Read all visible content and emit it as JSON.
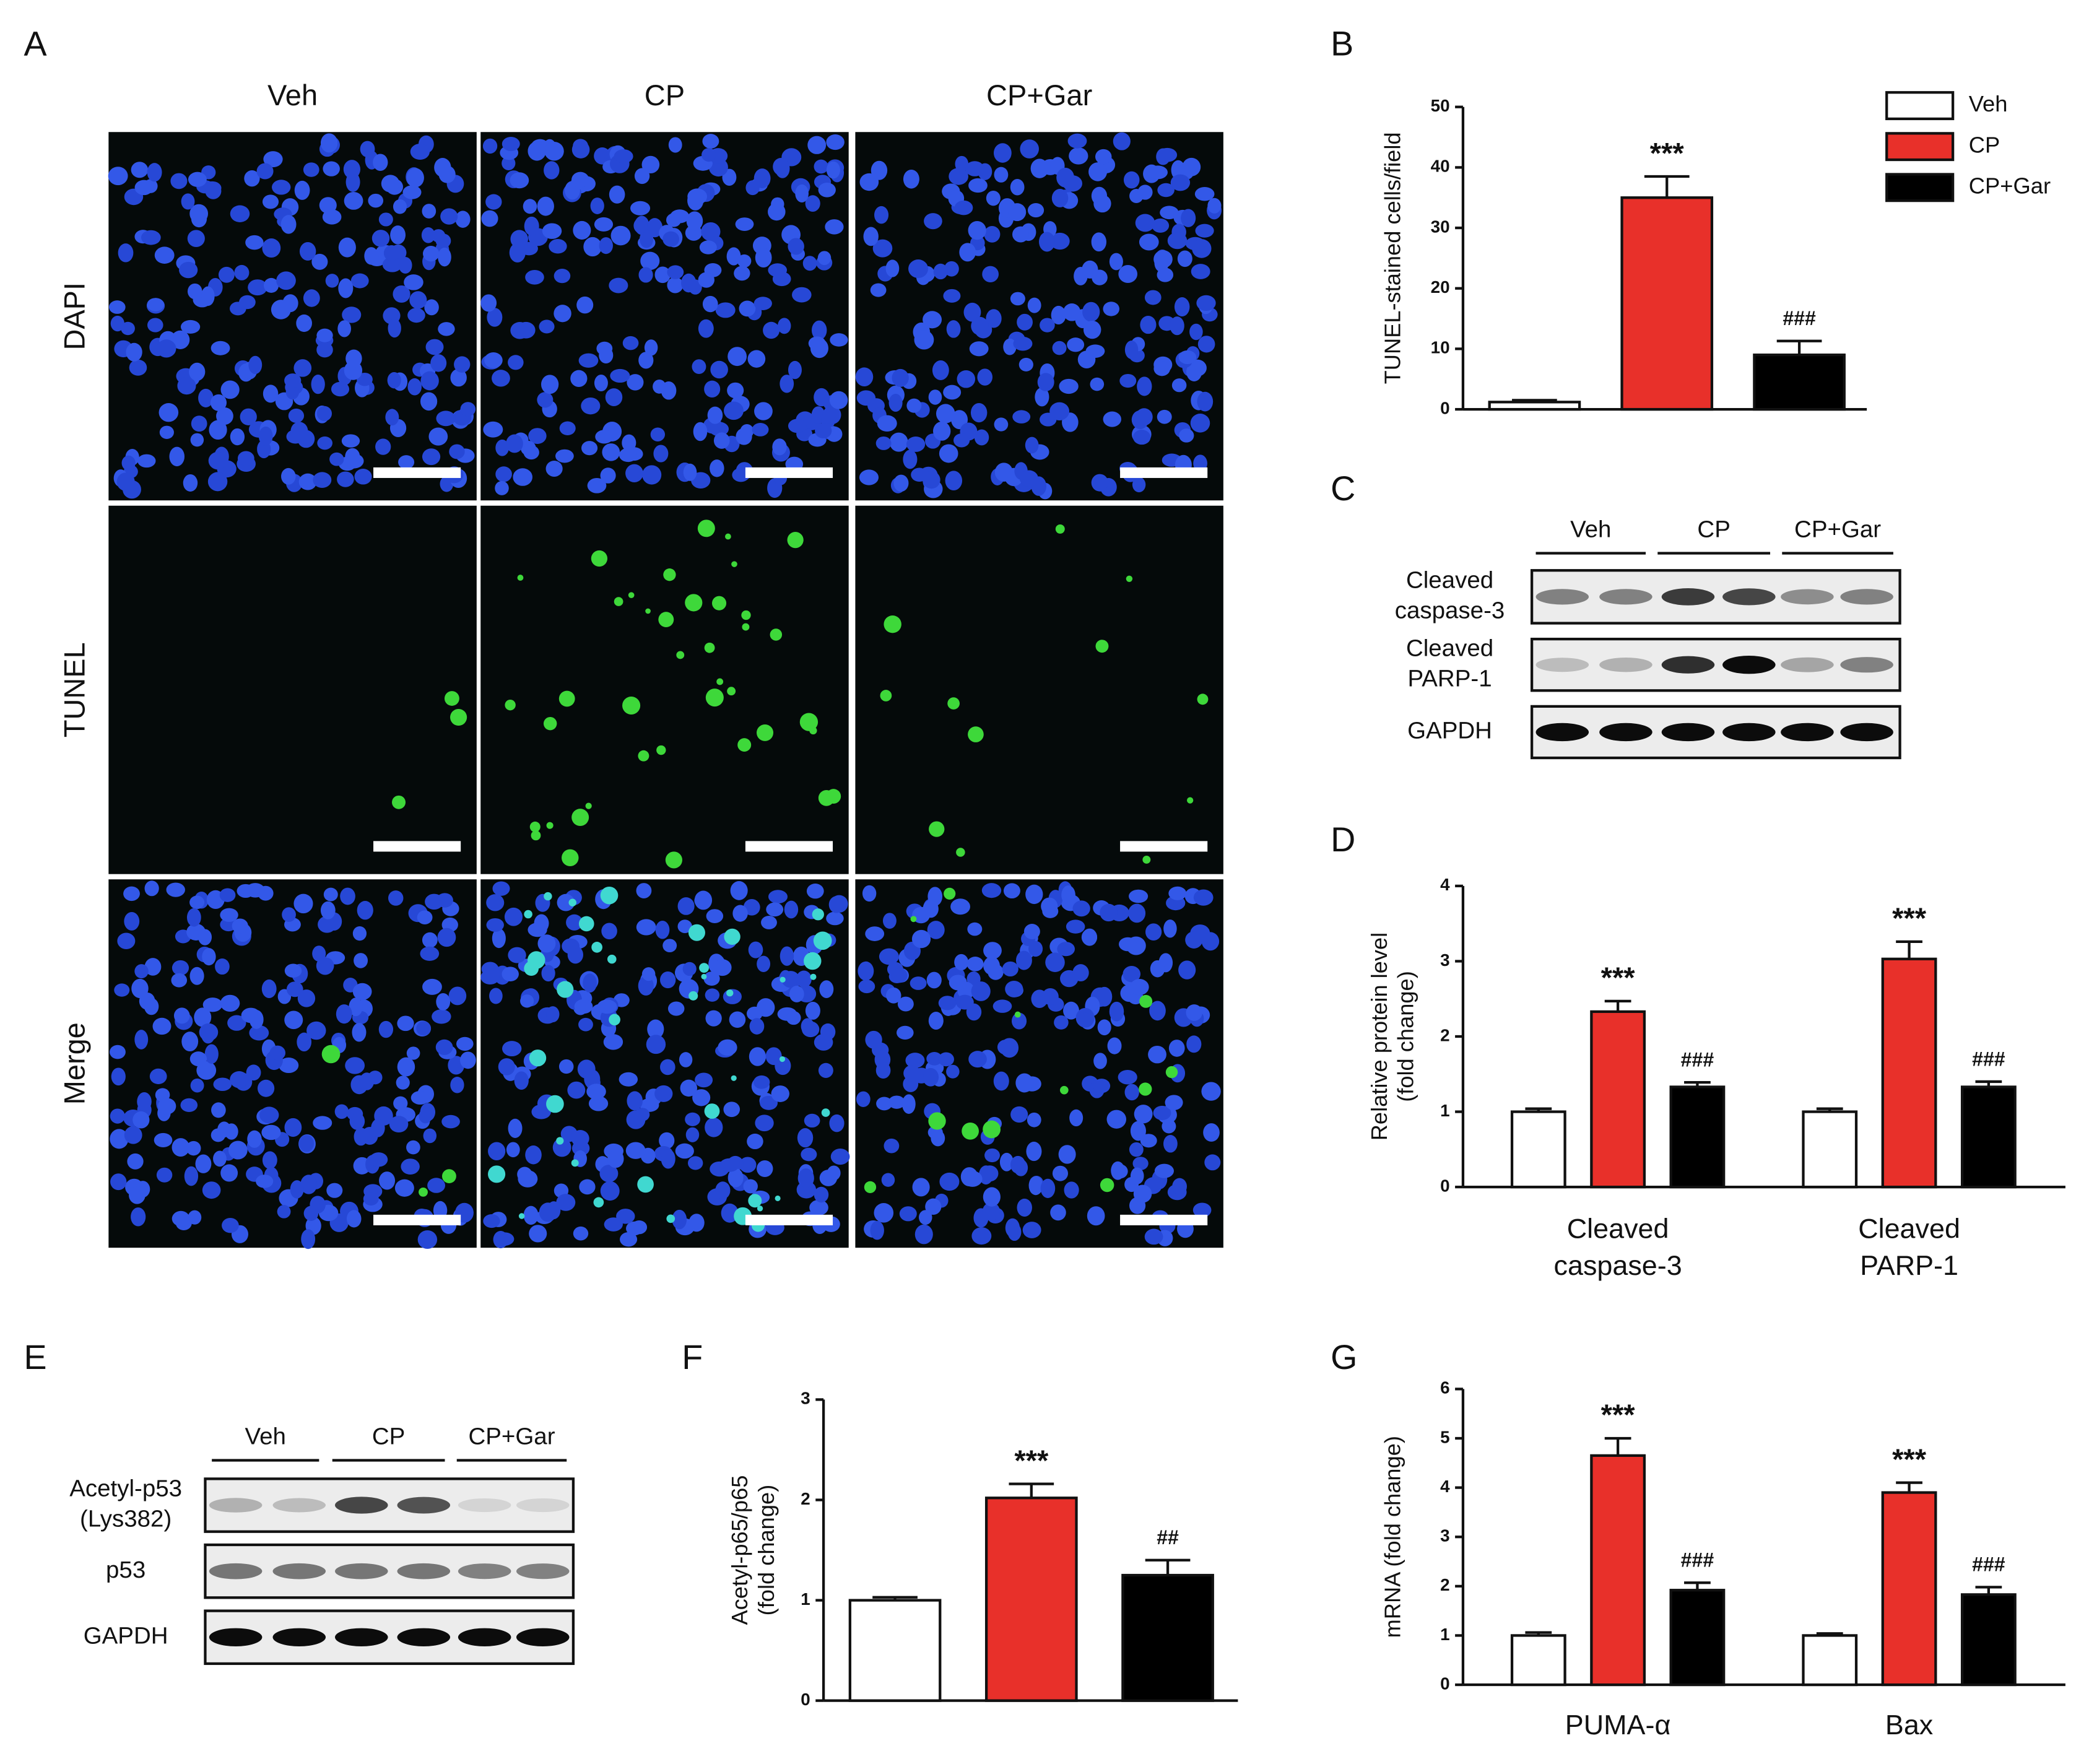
{
  "panels": [
    "A",
    "B",
    "C",
    "D",
    "E",
    "F",
    "G"
  ],
  "microscopy": {
    "columns": [
      "Veh",
      "CP",
      "CP+Gar"
    ],
    "rows": [
      "DAPI",
      "TUNEL",
      "Merge"
    ]
  },
  "blot_c": {
    "groups": [
      "Veh",
      "CP",
      "CP+Gar"
    ],
    "bands": [
      [
        "Cleaved",
        "caspase-3"
      ],
      [
        "Cleaved",
        "PARP-1"
      ],
      [
        "GAPDH"
      ]
    ]
  },
  "blot_e": {
    "groups": [
      "Veh",
      "CP",
      "CP+Gar"
    ],
    "bands": [
      [
        "Acetyl-p53",
        "(Lys382)"
      ],
      [
        "p53"
      ],
      [
        "GAPDH"
      ]
    ]
  },
  "chart_data": [
    {
      "type": "bar",
      "ylabel": [
        "TUNEL-stained cells/field"
      ],
      "ylim": [
        0,
        50
      ],
      "yticks": [
        0,
        10,
        20,
        30,
        40,
        50
      ],
      "legend": true,
      "series": [
        {
          "name": "Veh",
          "color": "#ffffff",
          "values": [
            1.2
          ],
          "errors": [
            0.3
          ]
        },
        {
          "name": "CP",
          "color": "#e8302a",
          "values": [
            35
          ],
          "errors": [
            3.5
          ],
          "annotations": [
            "***"
          ]
        },
        {
          "name": "CP+Gar",
          "color": "#000000",
          "values": [
            9
          ],
          "errors": [
            2.3
          ],
          "annotations": [
            "###"
          ]
        }
      ]
    },
    {
      "type": "bar",
      "ylabel": [
        "Relative protein level",
        "(fold change)"
      ],
      "ylim": [
        0,
        4
      ],
      "yticks": [
        0,
        1,
        2,
        3,
        4
      ],
      "legend": false,
      "categories": [
        [
          "Cleaved",
          "caspase-3"
        ],
        [
          "Cleaved",
          "PARP-1"
        ]
      ],
      "series": [
        {
          "name": "Veh",
          "color": "#ffffff",
          "values": [
            1,
            1
          ],
          "errors": [
            0.04,
            0.04
          ]
        },
        {
          "name": "CP",
          "color": "#e8302a",
          "values": [
            2.33,
            3.03
          ],
          "errors": [
            0.14,
            0.23
          ],
          "annotations": [
            "***",
            "***"
          ]
        },
        {
          "name": "CP+Gar",
          "color": "#000000",
          "values": [
            1.33,
            1.33
          ],
          "errors": [
            0.06,
            0.07
          ],
          "annotations": [
            "###",
            "###"
          ]
        }
      ]
    },
    {
      "type": "bar",
      "ylabel": [
        "Acetyl-p65/p65",
        "(fold change)"
      ],
      "ylim": [
        0,
        3
      ],
      "yticks": [
        0,
        1,
        2,
        3
      ],
      "legend": false,
      "series": [
        {
          "name": "Veh",
          "color": "#ffffff",
          "values": [
            1
          ],
          "errors": [
            0.03
          ]
        },
        {
          "name": "CP",
          "color": "#e8302a",
          "values": [
            2.02
          ],
          "errors": [
            0.14
          ],
          "annotations": [
            "***"
          ]
        },
        {
          "name": "CP+Gar",
          "color": "#000000",
          "values": [
            1.25
          ],
          "errors": [
            0.15
          ],
          "annotations": [
            "##"
          ]
        }
      ]
    },
    {
      "type": "bar",
      "ylabel": [
        "mRNA (fold change)"
      ],
      "ylim": [
        0,
        6
      ],
      "yticks": [
        0,
        1,
        2,
        3,
        4,
        5,
        6
      ],
      "legend": false,
      "categories": [
        [
          "PUMA-α"
        ],
        [
          "Bax"
        ]
      ],
      "series": [
        {
          "name": "Veh",
          "color": "#ffffff",
          "values": [
            1,
            1
          ],
          "errors": [
            0.06,
            0.04
          ]
        },
        {
          "name": "CP",
          "color": "#e8302a",
          "values": [
            4.65,
            3.9
          ],
          "errors": [
            0.35,
            0.2
          ],
          "annotations": [
            "***",
            "***"
          ]
        },
        {
          "name": "CP+Gar",
          "color": "#000000",
          "values": [
            1.92,
            1.83
          ],
          "errors": [
            0.15,
            0.15
          ],
          "annotations": [
            "###",
            "###"
          ]
        }
      ]
    }
  ]
}
